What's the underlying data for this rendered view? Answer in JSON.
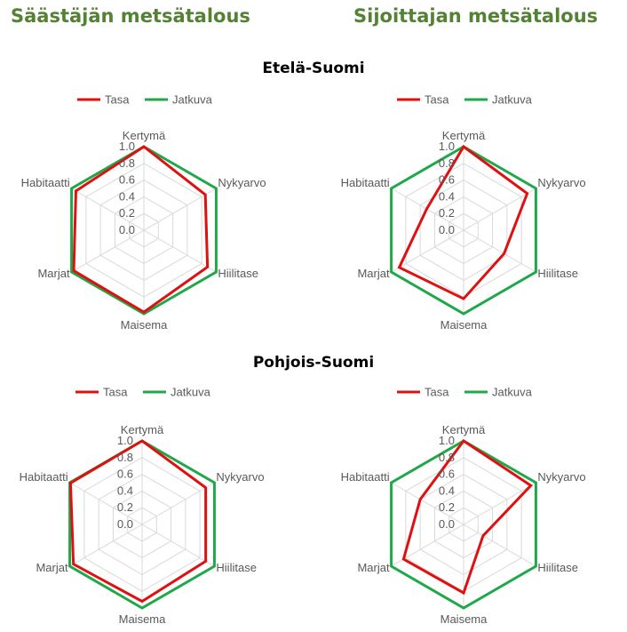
{
  "header": {
    "left_title": "Säästäjän metsätalous",
    "right_title": "Sijoittajan metsätalous"
  },
  "regions": [
    "Etelä-Suomi",
    "Pohjois-Suomi"
  ],
  "colors": {
    "tasa": "#e01010",
    "jatkuva": "#1fa84a",
    "grid": "#d9d9d9"
  },
  "chart_data": [
    {
      "type": "radar",
      "group": "Säästäjän metsätalous",
      "region": "Etelä-Suomi",
      "axes": [
        "Kertymä",
        "Nykyarvo",
        "Hiilitase",
        "Maisema",
        "Marjat",
        "Habitaatti"
      ],
      "ticks": [
        "0.0",
        "0.2",
        "0.4",
        "0.6",
        "0.8",
        "1.0"
      ],
      "range": [
        0,
        1
      ],
      "legend": "top",
      "series": [
        {
          "name": "Tasa",
          "values": [
            1.0,
            0.85,
            0.88,
            0.98,
            0.97,
            0.94
          ]
        },
        {
          "name": "Jatkuva",
          "values": [
            1.0,
            1.0,
            1.0,
            1.0,
            1.0,
            1.0
          ]
        }
      ]
    },
    {
      "type": "radar",
      "group": "Sijoittajan metsätalous",
      "region": "Etelä-Suomi",
      "axes": [
        "Kertymä",
        "Nykyarvo",
        "Hiilitase",
        "Maisema",
        "Marjat",
        "Habitaatti"
      ],
      "ticks": [
        "0.0",
        "0.2",
        "0.4",
        "0.6",
        "0.8",
        "1.0"
      ],
      "range": [
        0,
        1
      ],
      "legend": "top",
      "series": [
        {
          "name": "Tasa",
          "values": [
            1.0,
            0.88,
            0.56,
            0.82,
            0.89,
            0.51
          ]
        },
        {
          "name": "Jatkuva",
          "values": [
            1.0,
            1.0,
            1.0,
            1.0,
            1.0,
            1.0
          ]
        }
      ]
    },
    {
      "type": "radar",
      "group": "Säästäjän metsätalous",
      "region": "Pohjois-Suomi",
      "axes": [
        "Kertymä",
        "Nykyarvo",
        "Hiilitase",
        "Maisema",
        "Marjat",
        "Habitaatti"
      ],
      "ticks": [
        "0.0",
        "0.2",
        "0.4",
        "0.6",
        "0.8",
        "1.0"
      ],
      "range": [
        0,
        1
      ],
      "legend": "top",
      "series": [
        {
          "name": "Tasa",
          "values": [
            1.0,
            0.88,
            0.88,
            0.92,
            0.95,
            0.99
          ]
        },
        {
          "name": "Jatkuva",
          "values": [
            1.0,
            1.0,
            1.0,
            1.0,
            1.0,
            1.0
          ]
        }
      ]
    },
    {
      "type": "radar",
      "group": "Sijoittajan metsätalous",
      "region": "Pohjois-Suomi",
      "axes": [
        "Kertymä",
        "Nykyarvo",
        "Hiilitase",
        "Maisema",
        "Marjat",
        "Habitaatti"
      ],
      "ticks": [
        "0.0",
        "0.2",
        "0.4",
        "0.6",
        "0.8",
        "1.0"
      ],
      "range": [
        0,
        1
      ],
      "legend": "top",
      "series": [
        {
          "name": "Tasa",
          "values": [
            1.0,
            0.93,
            0.27,
            0.82,
            0.83,
            0.6
          ]
        },
        {
          "name": "Jatkuva",
          "values": [
            1.0,
            1.0,
            1.0,
            1.0,
            1.0,
            1.0
          ]
        }
      ]
    }
  ]
}
